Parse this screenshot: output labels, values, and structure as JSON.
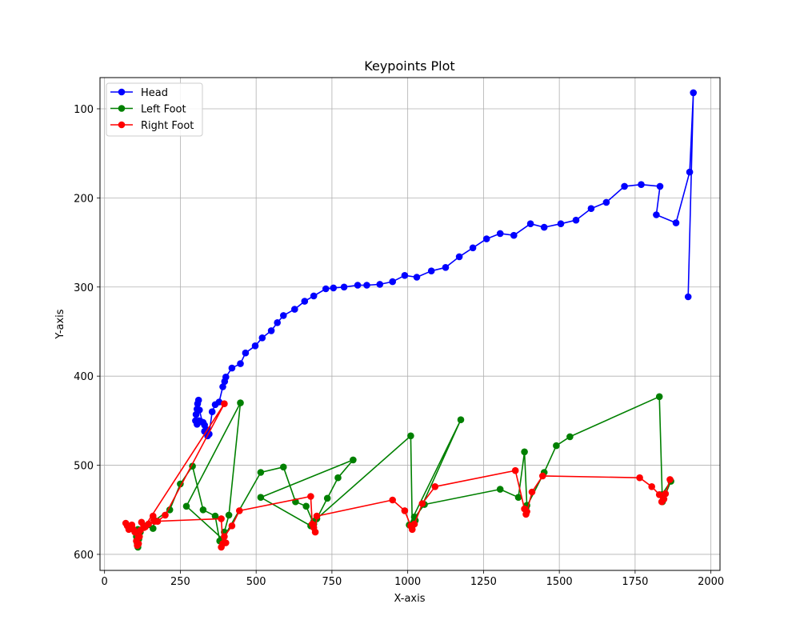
{
  "chart_data": {
    "type": "line",
    "title": "Keypoints Plot",
    "xlabel": "X-axis",
    "ylabel": "Y-axis",
    "xlim": [
      -15,
      2030
    ],
    "ylim": [
      618,
      65
    ],
    "y_inverted": true,
    "xticks": [
      0,
      250,
      500,
      750,
      1000,
      1250,
      1500,
      1750,
      2000
    ],
    "yticks": [
      100,
      200,
      300,
      400,
      500,
      600
    ],
    "grid": true,
    "legend_position": "upper-left",
    "series": [
      {
        "name": "Head",
        "color": "#0000ff",
        "points": [
          [
            340,
            467
          ],
          [
            336,
            460
          ],
          [
            330,
            455
          ],
          [
            325,
            452
          ],
          [
            318,
            451
          ],
          [
            312,
            450
          ],
          [
            305,
            454
          ],
          [
            300,
            450
          ],
          [
            302,
            443
          ],
          [
            305,
            437
          ],
          [
            307,
            431
          ],
          [
            310,
            427
          ],
          [
            313,
            438
          ],
          [
            330,
            462
          ],
          [
            345,
            465
          ],
          [
            355,
            440
          ],
          [
            365,
            432
          ],
          [
            378,
            429
          ],
          [
            390,
            412
          ],
          [
            396,
            406
          ],
          [
            400,
            401
          ],
          [
            420,
            391
          ],
          [
            448,
            386
          ],
          [
            465,
            374
          ],
          [
            497,
            366
          ],
          [
            520,
            357
          ],
          [
            550,
            349
          ],
          [
            570,
            340
          ],
          [
            590,
            332
          ],
          [
            627,
            325
          ],
          [
            660,
            316
          ],
          [
            690,
            310
          ],
          [
            730,
            302
          ],
          [
            755,
            301
          ],
          [
            790,
            300
          ],
          [
            835,
            298
          ],
          [
            865,
            298
          ],
          [
            908,
            297
          ],
          [
            950,
            294
          ],
          [
            990,
            287
          ],
          [
            1030,
            289
          ],
          [
            1078,
            282
          ],
          [
            1125,
            278
          ],
          [
            1170,
            266
          ],
          [
            1215,
            256
          ],
          [
            1260,
            246
          ],
          [
            1305,
            240
          ],
          [
            1350,
            242
          ],
          [
            1405,
            229
          ],
          [
            1450,
            233
          ],
          [
            1505,
            229
          ],
          [
            1555,
            225
          ],
          [
            1605,
            212
          ],
          [
            1655,
            205
          ],
          [
            1715,
            187
          ],
          [
            1770,
            185
          ],
          [
            1832,
            187
          ],
          [
            1820,
            219
          ],
          [
            1885,
            228
          ],
          [
            1930,
            171
          ],
          [
            1942,
            82
          ],
          [
            1925,
            311
          ]
        ]
      },
      {
        "name": "Left Foot",
        "color": "#008000",
        "points": [
          [
            110,
            572
          ],
          [
            105,
            580
          ],
          [
            108,
            588
          ],
          [
            110,
            592
          ],
          [
            113,
            583
          ],
          [
            118,
            575
          ],
          [
            130,
            568
          ],
          [
            160,
            571
          ],
          [
            165,
            562
          ],
          [
            215,
            550
          ],
          [
            250,
            521
          ],
          [
            290,
            501
          ],
          [
            325,
            550
          ],
          [
            365,
            557
          ],
          [
            380,
            585
          ],
          [
            395,
            575
          ],
          [
            410,
            556
          ],
          [
            448,
            430
          ],
          [
            270,
            546
          ],
          [
            390,
            583
          ],
          [
            515,
            508
          ],
          [
            590,
            502
          ],
          [
            630,
            541
          ],
          [
            665,
            546
          ],
          [
            690,
            566
          ],
          [
            700,
            560
          ],
          [
            735,
            537
          ],
          [
            770,
            514
          ],
          [
            820,
            494
          ],
          [
            515,
            536
          ],
          [
            680,
            568
          ],
          [
            690,
            563
          ],
          [
            1010,
            467
          ],
          [
            1015,
            568
          ],
          [
            1022,
            558
          ],
          [
            1025,
            562
          ],
          [
            1175,
            449
          ],
          [
            1005,
            567
          ],
          [
            1055,
            544
          ],
          [
            1305,
            527
          ],
          [
            1365,
            536
          ],
          [
            1385,
            485
          ],
          [
            1393,
            545
          ],
          [
            1390,
            548
          ],
          [
            1450,
            508
          ],
          [
            1490,
            478
          ],
          [
            1535,
            468
          ],
          [
            1830,
            423
          ],
          [
            1840,
            541
          ],
          [
            1868,
            518
          ],
          [
            1838,
            533
          ]
        ]
      },
      {
        "name": "Right Foot",
        "color": "#ff0000",
        "points": [
          [
            70,
            565
          ],
          [
            75,
            568
          ],
          [
            80,
            572
          ],
          [
            85,
            570
          ],
          [
            90,
            567
          ],
          [
            95,
            572
          ],
          [
            100,
            575
          ],
          [
            105,
            585
          ],
          [
            108,
            590
          ],
          [
            112,
            588
          ],
          [
            115,
            580
          ],
          [
            118,
            573
          ],
          [
            122,
            564
          ],
          [
            135,
            569
          ],
          [
            145,
            566
          ],
          [
            160,
            557
          ],
          [
            175,
            563
          ],
          [
            200,
            556
          ],
          [
            395,
            431
          ],
          [
            130,
            570
          ],
          [
            165,
            563
          ],
          [
            385,
            560
          ],
          [
            390,
            588
          ],
          [
            400,
            587
          ],
          [
            385,
            592
          ],
          [
            395,
            580
          ],
          [
            420,
            568
          ],
          [
            445,
            551
          ],
          [
            680,
            535
          ],
          [
            685,
            566
          ],
          [
            690,
            570
          ],
          [
            695,
            575
          ],
          [
            700,
            557
          ],
          [
            950,
            539
          ],
          [
            990,
            551
          ],
          [
            1010,
            568
          ],
          [
            1015,
            572
          ],
          [
            1022,
            566
          ],
          [
            1048,
            543
          ],
          [
            1090,
            524
          ],
          [
            1355,
            506
          ],
          [
            1385,
            549
          ],
          [
            1390,
            555
          ],
          [
            1393,
            552
          ],
          [
            1410,
            530
          ],
          [
            1445,
            512
          ],
          [
            1765,
            514
          ],
          [
            1805,
            524
          ],
          [
            1830,
            533
          ],
          [
            1838,
            541
          ],
          [
            1845,
            538
          ],
          [
            1850,
            532
          ],
          [
            1865,
            516
          ]
        ]
      }
    ]
  }
}
